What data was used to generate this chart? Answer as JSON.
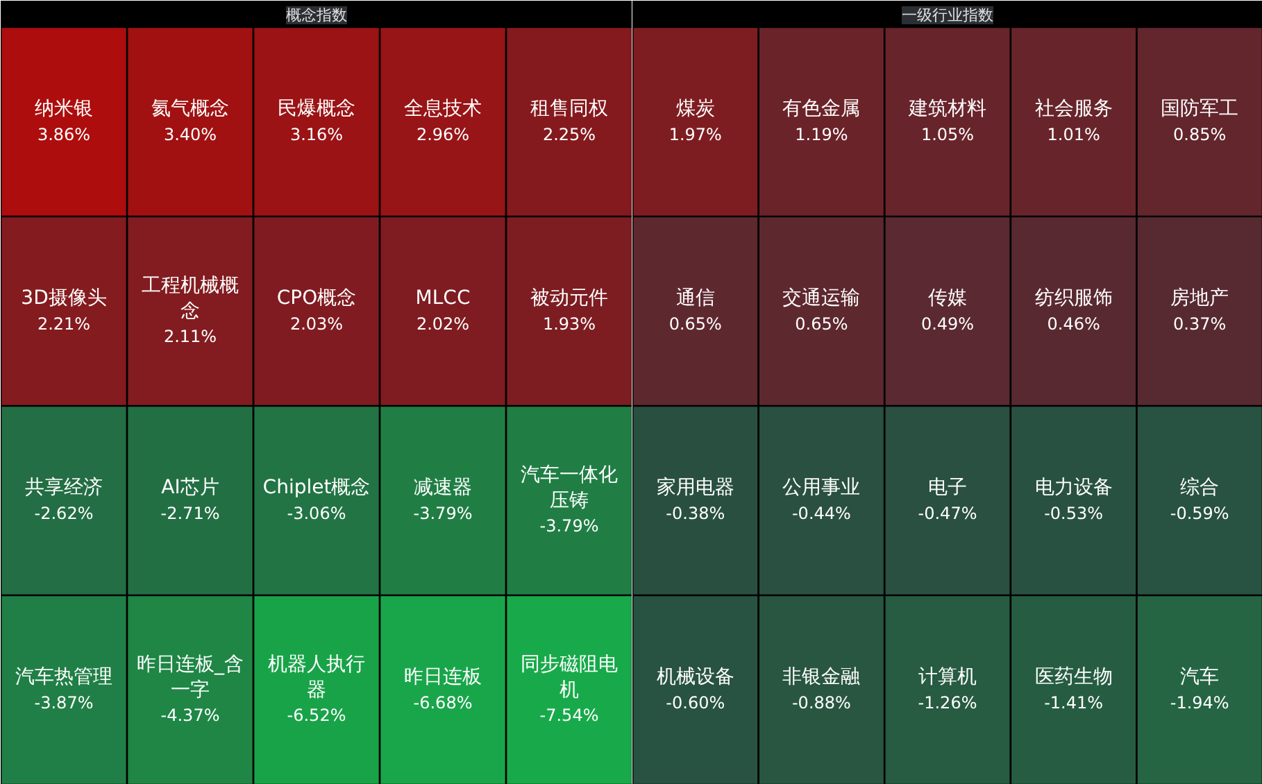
{
  "chart_data": [
    {
      "type": "other",
      "title": "概念指数",
      "categories": [
        "纳米银",
        "氦气概念",
        "民爆概念",
        "全息技术",
        "租售同权",
        "3D摄像头",
        "工程机械概念",
        "CPO概念",
        "MLCC",
        "被动元件",
        "共享经济",
        "AI芯片",
        "Chiplet概念",
        "减速器",
        "汽车一体化压铸",
        "汽车热管理",
        "昨日连板_含一字",
        "机器人执行器",
        "昨日连板",
        "同步磁阻电机"
      ],
      "values": [
        3.86,
        3.4,
        3.16,
        2.96,
        2.25,
        2.21,
        2.11,
        2.03,
        2.02,
        1.93,
        -2.62,
        -2.71,
        -3.06,
        -3.79,
        -3.79,
        -3.87,
        -4.37,
        -6.52,
        -6.68,
        -7.54
      ],
      "value_labels": [
        "3.86%",
        "3.40%",
        "3.16%",
        "2.96%",
        "2.25%",
        "2.21%",
        "2.11%",
        "2.03%",
        "2.02%",
        "1.93%",
        "-2.62%",
        "-2.71%",
        "-3.06%",
        "-3.79%",
        "-3.79%",
        "-3.87%",
        "-4.37%",
        "-6.52%",
        "-6.68%",
        "-7.54%"
      ]
    },
    {
      "type": "other",
      "title": "一级行业指数",
      "categories": [
        "煤炭",
        "有色金属",
        "建筑材料",
        "社会服务",
        "国防军工",
        "通信",
        "交通运输",
        "传媒",
        "纺织服饰",
        "房地产",
        "家用电器",
        "公用事业",
        "电子",
        "电力设备",
        "综合",
        "机械设备",
        "非银金融",
        "计算机",
        "医药生物",
        "汽车"
      ],
      "values": [
        1.97,
        1.19,
        1.05,
        1.01,
        0.85,
        0.65,
        0.65,
        0.49,
        0.46,
        0.37,
        -0.38,
        -0.44,
        -0.47,
        -0.53,
        -0.59,
        -0.6,
        -0.88,
        -1.26,
        -1.41,
        -1.94
      ],
      "value_labels": [
        "1.97%",
        "1.19%",
        "1.05%",
        "1.01%",
        "0.85%",
        "0.65%",
        "0.65%",
        "0.49%",
        "0.46%",
        "0.37%",
        "-0.38%",
        "-0.44%",
        "-0.47%",
        "-0.53%",
        "-0.59%",
        "-0.60%",
        "-0.88%",
        "-1.26%",
        "-1.41%",
        "-1.94%"
      ]
    }
  ]
}
